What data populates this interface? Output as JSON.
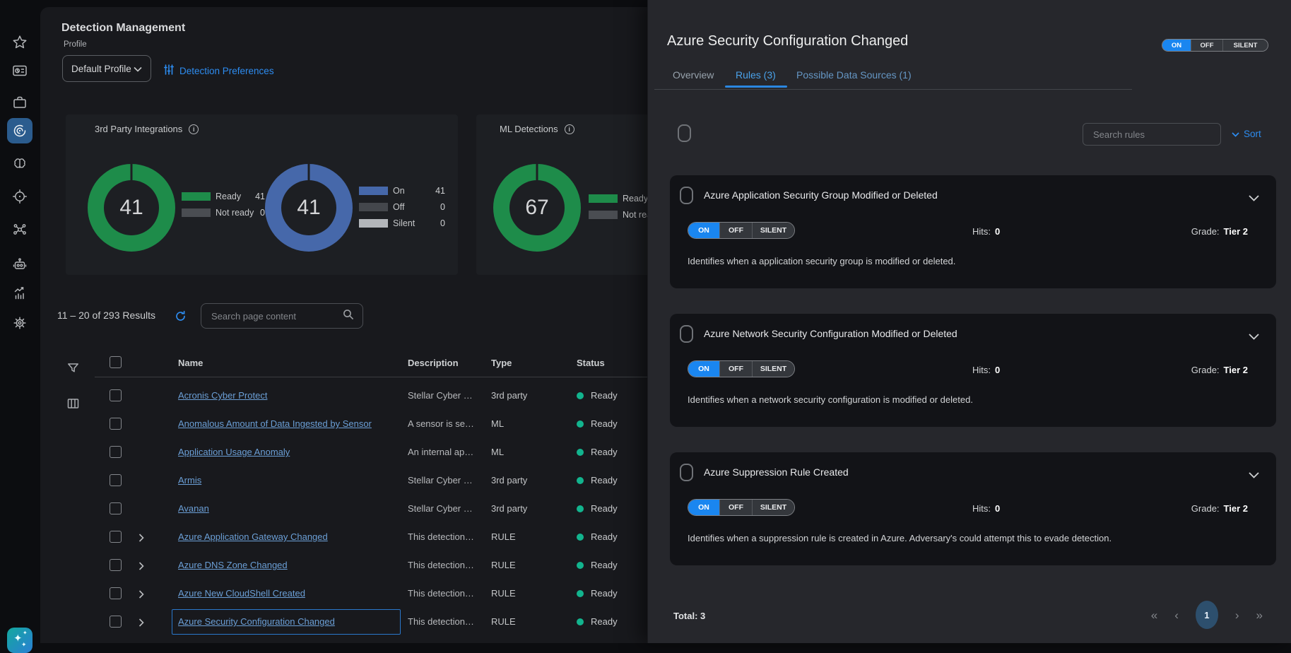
{
  "sidebar": {
    "icons": [
      "star",
      "dashboard",
      "briefcase",
      "radar",
      "brain",
      "target",
      "graph",
      "robot",
      "chart",
      "gear"
    ],
    "active_icon": "radar",
    "ai_sparkle": "✦"
  },
  "main": {
    "title": "Detection Management",
    "profile": {
      "label": "Profile",
      "value": "Default Profile"
    },
    "preferences_link": "Detection Preferences",
    "summary_cards": [
      {
        "title": "3rd Party Integrations",
        "donuts": [
          {
            "value": "41",
            "color": "#1e8c4a",
            "legend": [
              {
                "label": "Ready",
                "value": "41",
                "color": "#1e8c4a"
              },
              {
                "label": "Not ready",
                "value": "0",
                "color": "#4a4d52"
              }
            ]
          },
          {
            "value": "41",
            "color": "#4668aa",
            "legend": [
              {
                "label": "On",
                "value": "41",
                "color": "#4668aa"
              },
              {
                "label": "Off",
                "value": "0",
                "color": "#44474c"
              },
              {
                "label": "Silent",
                "value": "0",
                "color": "#b3b6ba"
              }
            ]
          }
        ]
      },
      {
        "title": "ML Detections",
        "donuts": [
          {
            "value": "67",
            "color": "#1e8c4a",
            "legend": [
              {
                "label": "Ready",
                "value": "",
                "color": "#1e8c4a"
              },
              {
                "label": "Not ready",
                "value": "",
                "color": "#4a4d52"
              }
            ]
          }
        ]
      }
    ],
    "results_summary": "11 – 20 of 293 Results",
    "search_placeholder": "Search page content",
    "table": {
      "headers": [
        "Name",
        "Description",
        "Type",
        "Status"
      ],
      "rows": [
        {
          "name": "Acronis Cyber Protect",
          "description": "Stellar Cyber …",
          "type": "3rd party",
          "status": "Ready",
          "expandable": false,
          "selected": false,
          "partial": false
        },
        {
          "name": "Anomalous Amount of Data Ingested by Sensor",
          "description": "A sensor is se…",
          "type": "ML",
          "status": "Ready",
          "expandable": false,
          "selected": false,
          "partial": false
        },
        {
          "name": "Application Usage Anomaly",
          "description": "An internal ap…",
          "type": "ML",
          "status": "Ready",
          "expandable": false,
          "selected": false,
          "partial": false
        },
        {
          "name": "Armis",
          "description": "Stellar Cyber …",
          "type": "3rd party",
          "status": "Ready",
          "expandable": false,
          "selected": false,
          "partial": false
        },
        {
          "name": "Avanan",
          "description": "Stellar Cyber …",
          "type": "3rd party",
          "status": "Ready",
          "expandable": false,
          "selected": false,
          "partial": false
        },
        {
          "name": "Azure Application Gateway Changed",
          "description": "This detection…",
          "type": "RULE",
          "status": "Ready",
          "expandable": true,
          "selected": false,
          "partial": false
        },
        {
          "name": "Azure DNS Zone Changed",
          "description": "This detection…",
          "type": "RULE",
          "status": "Ready",
          "expandable": true,
          "selected": false,
          "partial": false
        },
        {
          "name": "Azure New CloudShell Created",
          "description": "This detection…",
          "type": "RULE",
          "status": "Ready",
          "expandable": true,
          "selected": false,
          "partial": false
        },
        {
          "name": "Azure Security Configuration Changed",
          "description": "This detection…",
          "type": "RULE",
          "status": "Ready",
          "expandable": true,
          "selected": true,
          "partial": false
        },
        {
          "name": "",
          "description": "",
          "type": "",
          "status": "",
          "expandable": false,
          "selected": false,
          "partial": true
        }
      ]
    }
  },
  "drawer": {
    "title": "Azure Security Configuration Changed",
    "state_toggle": {
      "options": [
        "ON",
        "OFF",
        "SILENT"
      ],
      "active": "ON"
    },
    "tabs": [
      {
        "label": "Overview",
        "active": false
      },
      {
        "label": "Rules (3)",
        "active": true
      },
      {
        "label": "Possible Data Sources (1)",
        "active": false
      }
    ],
    "toolbar": {
      "search_placeholder": "Search rules",
      "sort_label": "Sort"
    },
    "rules": [
      {
        "title": "Azure Application Security Group Modified or Deleted",
        "toggle_active": "ON",
        "hits_label": "Hits:",
        "hits": "0",
        "grade_label": "Grade:",
        "grade": "Tier 2",
        "description": "Identifies when a application security group is modified or deleted."
      },
      {
        "title": "Azure Network Security Configuration Modified or Deleted",
        "toggle_active": "ON",
        "hits_label": "Hits:",
        "hits": "0",
        "grade_label": "Grade:",
        "grade": "Tier 2",
        "description": "Identifies when a network security configuration is modified or deleted."
      },
      {
        "title": "Azure Suppression Rule Created",
        "toggle_active": "ON",
        "hits_label": "Hits:",
        "hits": "0",
        "grade_label": "Grade:",
        "grade": "Tier 2",
        "description": "Identifies when a suppression rule is created in Azure. Adversary's could attempt this to evade detection."
      }
    ],
    "footer": {
      "total": "Total: 3"
    },
    "pagination": {
      "first": "«",
      "prev": "‹",
      "page": "1",
      "next": "›",
      "last": "»"
    }
  }
}
